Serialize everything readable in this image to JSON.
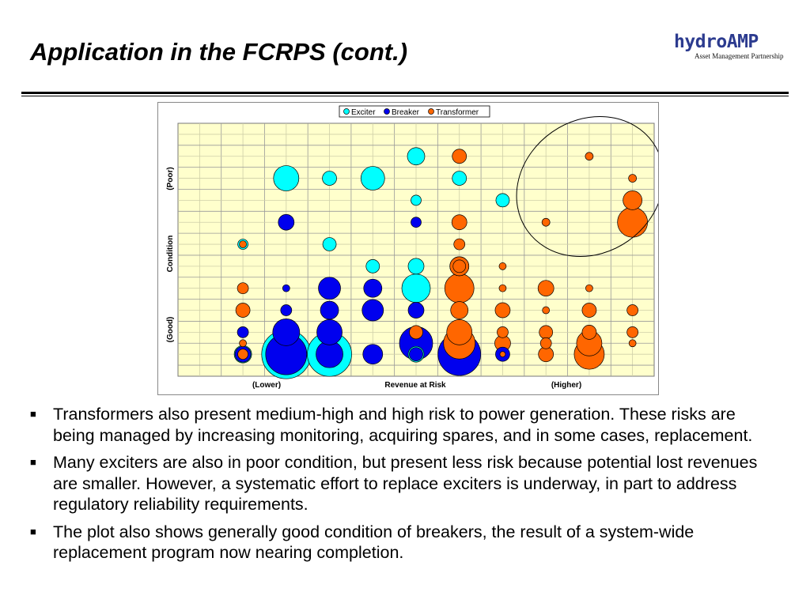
{
  "slide": {
    "title": "Application in the FCRPS (cont.)",
    "logo": {
      "main": "hydroAMP",
      "sub": "Asset Management Partnership"
    }
  },
  "chart_data": {
    "type": "scatter",
    "title": "",
    "xlabel": "Revenue at Risk",
    "x_tick_labels": {
      "left": "(Lower)",
      "right": "(Higher)"
    },
    "ylabel": "Condition",
    "y_tick_labels": {
      "top": "(Poor)",
      "bottom": "(Good)"
    },
    "xlim": [
      0,
      21
    ],
    "ylim": [
      0,
      11
    ],
    "grid": true,
    "legend_position": "top-center",
    "annotation": "ellipse around high-risk poor-condition transformers (upper right)",
    "colors": {
      "Exciter": "#00ffff",
      "Breaker": "#0000ee",
      "Transformer": "#ff6600",
      "plot_background": "#ffffcc"
    },
    "series": [
      {
        "name": "Exciter",
        "points": [
          {
            "x": 5,
            "y": 9,
            "size": 32
          },
          {
            "x": 7,
            "y": 9,
            "size": 18
          },
          {
            "x": 9,
            "y": 9,
            "size": 30
          },
          {
            "x": 11,
            "y": 10,
            "size": 22
          },
          {
            "x": 13,
            "y": 9,
            "size": 18
          },
          {
            "x": 11,
            "y": 8,
            "size": 13
          },
          {
            "x": 15,
            "y": 8,
            "size": 17
          },
          {
            "x": 3,
            "y": 6,
            "size": 13
          },
          {
            "x": 7,
            "y": 6,
            "size": 17
          },
          {
            "x": 9,
            "y": 5,
            "size": 17
          },
          {
            "x": 11,
            "y": 5,
            "size": 20
          },
          {
            "x": 13,
            "y": 5,
            "size": 24
          },
          {
            "x": 11,
            "y": 4,
            "size": 36
          },
          {
            "x": 5,
            "y": 1,
            "size": 62
          },
          {
            "x": 7,
            "y": 1,
            "size": 56
          },
          {
            "x": 3,
            "y": 1,
            "size": 22
          },
          {
            "x": 11,
            "y": 1,
            "size": 20
          }
        ]
      },
      {
        "name": "Breaker",
        "points": [
          {
            "x": 5,
            "y": 7,
            "size": 20
          },
          {
            "x": 11,
            "y": 7,
            "size": 13
          },
          {
            "x": 5,
            "y": 4,
            "size": 9
          },
          {
            "x": 7,
            "y": 4,
            "size": 28
          },
          {
            "x": 9,
            "y": 4,
            "size": 23
          },
          {
            "x": 5,
            "y": 3,
            "size": 14
          },
          {
            "x": 7,
            "y": 3,
            "size": 23
          },
          {
            "x": 9,
            "y": 3,
            "size": 27
          },
          {
            "x": 11,
            "y": 3,
            "size": 20
          },
          {
            "x": 3,
            "y": 2,
            "size": 14
          },
          {
            "x": 5,
            "y": 2,
            "size": 34
          },
          {
            "x": 7,
            "y": 2,
            "size": 32
          },
          {
            "x": 11,
            "y": 1.5,
            "size": 42
          },
          {
            "x": 5,
            "y": 1,
            "size": 52
          },
          {
            "x": 7,
            "y": 1,
            "size": 34
          },
          {
            "x": 9,
            "y": 1,
            "size": 25
          },
          {
            "x": 13,
            "y": 1,
            "size": 54
          },
          {
            "x": 15,
            "y": 1,
            "size": 18
          },
          {
            "x": 3,
            "y": 1,
            "size": 20
          },
          {
            "x": 11,
            "y": 1,
            "size": 17
          }
        ]
      },
      {
        "name": "Transformer",
        "points": [
          {
            "x": 13,
            "y": 10,
            "size": 18
          },
          {
            "x": 19,
            "y": 10,
            "size": 10
          },
          {
            "x": 21,
            "y": 9,
            "size": 10
          },
          {
            "x": 21,
            "y": 8,
            "size": 24
          },
          {
            "x": 21,
            "y": 7,
            "size": 38
          },
          {
            "x": 17,
            "y": 7,
            "size": 10
          },
          {
            "x": 13,
            "y": 7,
            "size": 19
          },
          {
            "x": 3,
            "y": 6,
            "size": 9
          },
          {
            "x": 13,
            "y": 6,
            "size": 14
          },
          {
            "x": 13,
            "y": 5,
            "size": 16
          },
          {
            "x": 15,
            "y": 5,
            "size": 9
          },
          {
            "x": 3,
            "y": 4,
            "size": 14
          },
          {
            "x": 13,
            "y": 4,
            "size": 37
          },
          {
            "x": 15,
            "y": 4,
            "size": 9
          },
          {
            "x": 17,
            "y": 4,
            "size": 20
          },
          {
            "x": 19,
            "y": 4,
            "size": 9
          },
          {
            "x": 3,
            "y": 3,
            "size": 18
          },
          {
            "x": 13,
            "y": 3,
            "size": 22
          },
          {
            "x": 15,
            "y": 3,
            "size": 19
          },
          {
            "x": 17,
            "y": 3,
            "size": 9
          },
          {
            "x": 19,
            "y": 3,
            "size": 18
          },
          {
            "x": 21,
            "y": 3,
            "size": 14
          },
          {
            "x": 11,
            "y": 2,
            "size": 17
          },
          {
            "x": 13,
            "y": 2,
            "size": 32
          },
          {
            "x": 15,
            "y": 2,
            "size": 14
          },
          {
            "x": 17,
            "y": 2,
            "size": 17
          },
          {
            "x": 19,
            "y": 2,
            "size": 18
          },
          {
            "x": 21,
            "y": 2,
            "size": 14
          },
          {
            "x": 3,
            "y": 1.5,
            "size": 9
          },
          {
            "x": 13,
            "y": 1.5,
            "size": 40
          },
          {
            "x": 15,
            "y": 1.5,
            "size": 20
          },
          {
            "x": 17,
            "y": 1.5,
            "size": 14
          },
          {
            "x": 19,
            "y": 1.5,
            "size": 32
          },
          {
            "x": 21,
            "y": 1.5,
            "size": 9
          },
          {
            "x": 3,
            "y": 1,
            "size": 13
          },
          {
            "x": 15,
            "y": 1,
            "size": 7
          },
          {
            "x": 17,
            "y": 1,
            "size": 19
          },
          {
            "x": 19,
            "y": 1,
            "size": 38
          },
          {
            "x": 13,
            "y": 5,
            "size": 24
          }
        ]
      }
    ]
  },
  "bullets": [
    "Transformers also present medium-high and high risk to power generation.  These risks are being managed by increasing monitoring, acquiring spares, and in some cases, replacement.",
    "Many exciters are also in poor condition, but present less risk because potential lost revenues are smaller.  However, a systematic effort to replace exciters is underway, in part to address regulatory reliability requirements.",
    "The plot also shows generally good condition of breakers, the result of a system-wide replacement program now nearing completion."
  ],
  "bullet_marker": "■"
}
